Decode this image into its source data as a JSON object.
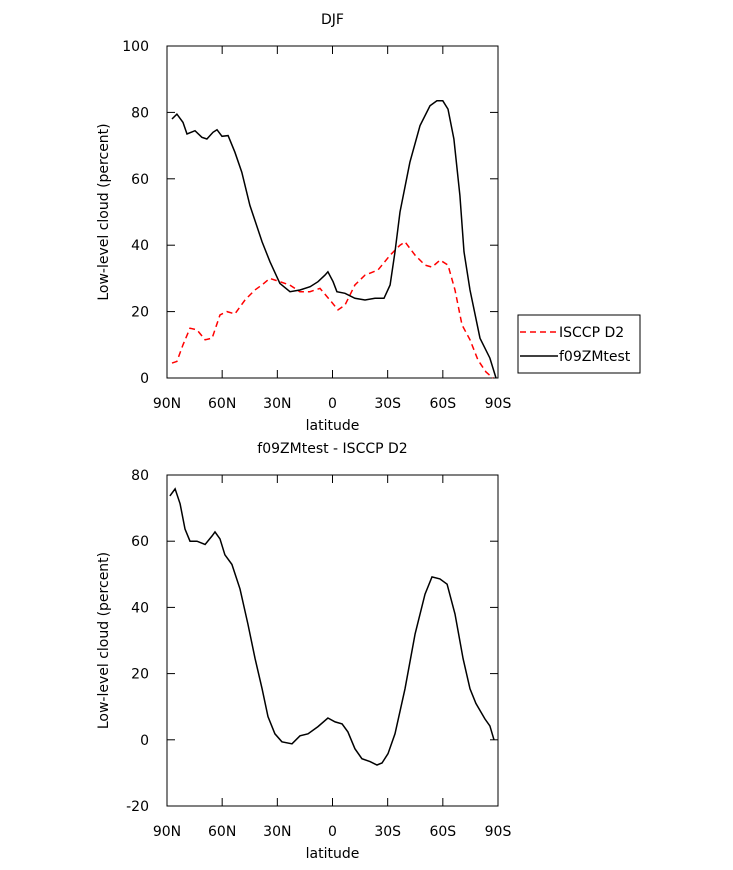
{
  "chart_data": [
    {
      "type": "line",
      "title": "DJF",
      "xlabel": "latitude",
      "ylabel": "Low-level cloud (percent)",
      "xlim": [
        90,
        -90
      ],
      "ylim": [
        0,
        100
      ],
      "xticks": [
        {
          "value": 90,
          "label": "90N"
        },
        {
          "value": 60,
          "label": "60N"
        },
        {
          "value": 30,
          "label": "30N"
        },
        0,
        {
          "value": -30,
          "label": "30S"
        },
        {
          "value": -60,
          "label": "60S"
        },
        {
          "value": -90,
          "label": "90S"
        }
      ],
      "yticks": [
        0,
        20,
        40,
        60,
        80,
        100
      ],
      "legend": "right",
      "series": [
        {
          "name": "ISCCP D2",
          "color": "#ff0000",
          "dash": true,
          "x": [
            87.3,
            84.6,
            81.3,
            77.5,
            73.7,
            69.3,
            65.5,
            61.2,
            57.4,
            53.1,
            47.6,
            42.2,
            38.4,
            34.1,
            28.6,
            23.2,
            17.8,
            12.3,
            6.8,
            1.4,
            -3,
            -6.8,
            -12.2,
            -17.7,
            -24.7,
            -31.3,
            -36.7,
            -39.4,
            -44.9,
            -50.3,
            -54.1,
            -58.5,
            -62.8,
            -66.6,
            -70.4,
            -74.8,
            -79.1,
            -83.5,
            -87.3
          ],
          "values": [
            4.5,
            5,
            10,
            15,
            14.5,
            11.5,
            12,
            19,
            20,
            19.3,
            23.5,
            26.5,
            28,
            30,
            29,
            28,
            26,
            26,
            27,
            23.5,
            20.5,
            22,
            28,
            31,
            32.5,
            37,
            40,
            41,
            37,
            34,
            33.4,
            35.5,
            34,
            26.5,
            16,
            11.5,
            5.4,
            1.8,
            0
          ]
        },
        {
          "name": "f09ZMtest",
          "color": "#000000",
          "dash": false,
          "x": [
            87.3,
            84.6,
            81.3,
            79.1,
            74.8,
            71,
            68.3,
            65,
            62.8,
            60.1,
            56.8,
            53.1,
            49.3,
            44.9,
            38.3,
            34,
            28.6,
            23.1,
            17.7,
            12.2,
            7.9,
            4.1,
            2.5,
            -0.3,
            -2.4,
            -6.8,
            -12.2,
            -17.7,
            -23.1,
            -28,
            -31.3,
            -34,
            -36.7,
            -42.1,
            -47.6,
            -53,
            -56.8,
            -60,
            -62.8,
            -66,
            -69.3,
            -71.5,
            -74.8,
            -80.2,
            -85.6,
            -88.9
          ],
          "values": [
            78,
            79.5,
            77,
            73.5,
            74.5,
            72.5,
            72,
            74,
            74.8,
            72.8,
            73,
            68,
            62,
            52,
            41,
            35,
            28.5,
            26,
            26.5,
            27.5,
            29,
            31,
            32,
            29,
            26,
            25.5,
            24,
            23.5,
            24,
            24,
            28,
            38,
            50,
            65,
            76,
            82,
            83.5,
            83.5,
            81,
            72,
            55,
            38,
            26.5,
            12,
            6,
            0
          ]
        }
      ]
    },
    {
      "type": "line",
      "title": "f09ZMtest - ISCCP D2",
      "xlabel": "latitude",
      "ylabel": "Low-level cloud (percent)",
      "xlim": [
        90,
        -90
      ],
      "ylim": [
        -20,
        80
      ],
      "xticks": [
        {
          "value": 90,
          "label": "90N"
        },
        {
          "value": 60,
          "label": "60N"
        },
        {
          "value": 30,
          "label": "30N"
        },
        0,
        {
          "value": -30,
          "label": "30S"
        },
        {
          "value": -60,
          "label": "60S"
        },
        {
          "value": -90,
          "label": "90S"
        }
      ],
      "yticks": [
        -20,
        0,
        20,
        40,
        60,
        80
      ],
      "series": [
        {
          "color": "#000000",
          "dash": false,
          "x": [
            88.4,
            85.6,
            82.9,
            80.2,
            77.5,
            73.7,
            69.3,
            65.5,
            63.9,
            61.2,
            58.5,
            54.7,
            50.3,
            46,
            42.1,
            38.3,
            35.1,
            31.3,
            27.5,
            22,
            17.7,
            13.3,
            7.9,
            2.5,
            -1.4,
            -5.2,
            -8.4,
            -12.2,
            -16,
            -20.4,
            -24.2,
            -26.9,
            -30.2,
            -34,
            -39.4,
            -44.9,
            -50.3,
            -54.1,
            -58.4,
            -62.3,
            -66.6,
            -71,
            -74.8,
            -78,
            -82.9,
            -85.6,
            -87.8
          ],
          "values": [
            73.7,
            75.8,
            71.3,
            63.7,
            60,
            60,
            59,
            61.6,
            62.8,
            60.7,
            55.9,
            53,
            45.6,
            35,
            24.5,
            15.4,
            7,
            1.8,
            -0.6,
            -1.2,
            1.2,
            1.8,
            4,
            6.6,
            5.4,
            4.8,
            2.4,
            -2.7,
            -5.7,
            -6.6,
            -7.6,
            -7,
            -4.2,
            1.8,
            15.4,
            32,
            44,
            49.2,
            48.6,
            47,
            38,
            24.5,
            15.4,
            11,
            6.3,
            4.2,
            0
          ]
        }
      ]
    }
  ]
}
